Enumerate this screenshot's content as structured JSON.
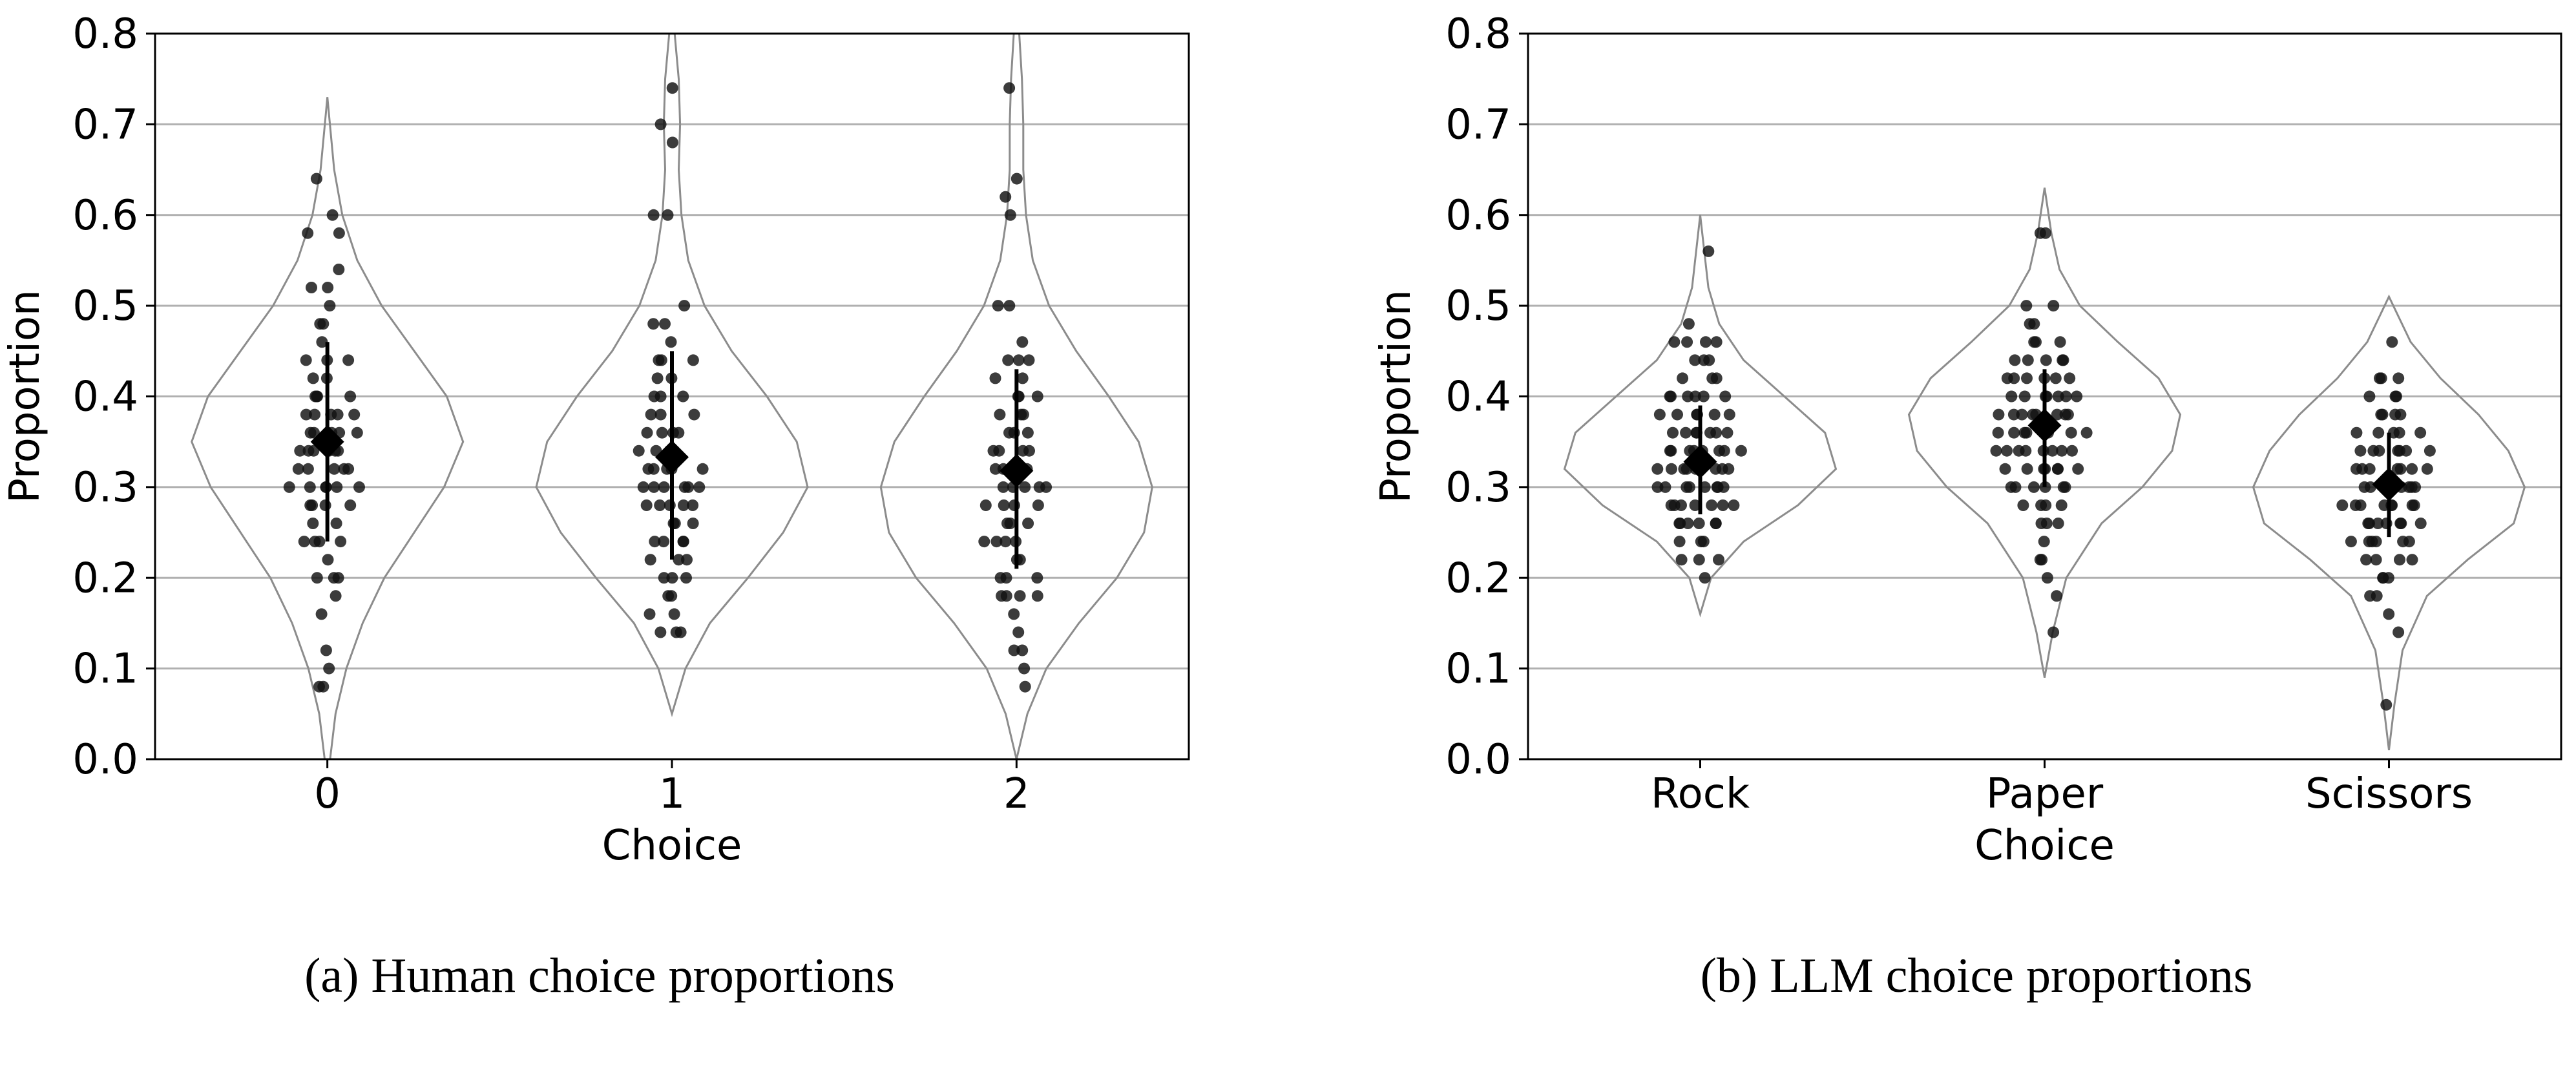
{
  "chart_data": [
    {
      "type": "violin",
      "ylabel": "Proportion",
      "xlabel": "Choice",
      "ylim": [
        0,
        0.8
      ],
      "yticks": [
        "0.0",
        "0.1",
        "0.2",
        "0.3",
        "0.4",
        "0.5",
        "0.6",
        "0.7",
        "0.8"
      ],
      "grid": "horizontal",
      "caption": "(a) Human choice proportions",
      "categories": [
        "0",
        "1",
        "2"
      ],
      "groups": [
        {
          "category": "0",
          "mean": 0.35,
          "error_bar": [
            0.24,
            0.46
          ],
          "density": [
            [
              0.0,
              0.02
            ],
            [
              0.05,
              0.06
            ],
            [
              0.1,
              0.14
            ],
            [
              0.15,
              0.26
            ],
            [
              0.2,
              0.42
            ],
            [
              0.25,
              0.64
            ],
            [
              0.3,
              0.86
            ],
            [
              0.35,
              1.0
            ],
            [
              0.4,
              0.88
            ],
            [
              0.45,
              0.64
            ],
            [
              0.5,
              0.4
            ],
            [
              0.55,
              0.22
            ],
            [
              0.6,
              0.11
            ],
            [
              0.65,
              0.05
            ],
            [
              0.73,
              0.0
            ]
          ],
          "points": [
            0.08,
            0.08,
            0.1,
            0.12,
            0.16,
            0.18,
            0.2,
            0.2,
            0.2,
            0.22,
            0.24,
            0.24,
            0.24,
            0.24,
            0.26,
            0.26,
            0.28,
            0.28,
            0.28,
            0.28,
            0.3,
            0.3,
            0.3,
            0.3,
            0.3,
            0.3,
            0.32,
            0.32,
            0.32,
            0.32,
            0.32,
            0.34,
            0.34,
            0.34,
            0.34,
            0.34,
            0.34,
            0.36,
            0.36,
            0.36,
            0.36,
            0.36,
            0.38,
            0.38,
            0.38,
            0.38,
            0.38,
            0.4,
            0.4,
            0.4,
            0.4,
            0.42,
            0.42,
            0.44,
            0.44,
            0.44,
            0.46,
            0.48,
            0.48,
            0.5,
            0.52,
            0.52,
            0.54,
            0.58,
            0.58,
            0.6,
            0.64
          ]
        },
        {
          "category": "1",
          "mean": 0.333,
          "error_bar": [
            0.22,
            0.45
          ],
          "density": [
            [
              0.05,
              0.0
            ],
            [
              0.1,
              0.1
            ],
            [
              0.15,
              0.28
            ],
            [
              0.2,
              0.56
            ],
            [
              0.25,
              0.82
            ],
            [
              0.3,
              1.0
            ],
            [
              0.35,
              0.92
            ],
            [
              0.4,
              0.7
            ],
            [
              0.45,
              0.44
            ],
            [
              0.5,
              0.24
            ],
            [
              0.55,
              0.12
            ],
            [
              0.6,
              0.07
            ],
            [
              0.65,
              0.05
            ],
            [
              0.7,
              0.06
            ],
            [
              0.75,
              0.05
            ],
            [
              0.8,
              0.02
            ]
          ],
          "points": [
            0.14,
            0.14,
            0.14,
            0.16,
            0.16,
            0.18,
            0.18,
            0.2,
            0.2,
            0.2,
            0.22,
            0.22,
            0.22,
            0.24,
            0.24,
            0.24,
            0.24,
            0.26,
            0.26,
            0.26,
            0.28,
            0.28,
            0.28,
            0.28,
            0.28,
            0.3,
            0.3,
            0.3,
            0.3,
            0.3,
            0.3,
            0.32,
            0.32,
            0.32,
            0.32,
            0.32,
            0.34,
            0.34,
            0.34,
            0.34,
            0.36,
            0.36,
            0.36,
            0.36,
            0.38,
            0.38,
            0.38,
            0.4,
            0.4,
            0.4,
            0.42,
            0.42,
            0.44,
            0.44,
            0.44,
            0.46,
            0.48,
            0.48,
            0.5,
            0.6,
            0.6,
            0.68,
            0.7,
            0.74
          ]
        },
        {
          "category": "2",
          "mean": 0.318,
          "error_bar": [
            0.21,
            0.43
          ],
          "density": [
            [
              0.0,
              0.0
            ],
            [
              0.05,
              0.08
            ],
            [
              0.1,
              0.22
            ],
            [
              0.15,
              0.46
            ],
            [
              0.2,
              0.74
            ],
            [
              0.25,
              0.94
            ],
            [
              0.3,
              1.0
            ],
            [
              0.35,
              0.9
            ],
            [
              0.4,
              0.68
            ],
            [
              0.45,
              0.44
            ],
            [
              0.5,
              0.24
            ],
            [
              0.55,
              0.12
            ],
            [
              0.6,
              0.07
            ],
            [
              0.65,
              0.05
            ],
            [
              0.7,
              0.05
            ],
            [
              0.75,
              0.04
            ],
            [
              0.8,
              0.02
            ]
          ],
          "points": [
            0.08,
            0.1,
            0.12,
            0.12,
            0.14,
            0.16,
            0.18,
            0.18,
            0.18,
            0.18,
            0.2,
            0.2,
            0.2,
            0.22,
            0.22,
            0.24,
            0.24,
            0.24,
            0.24,
            0.26,
            0.26,
            0.26,
            0.28,
            0.28,
            0.28,
            0.28,
            0.3,
            0.3,
            0.3,
            0.3,
            0.3,
            0.32,
            0.32,
            0.32,
            0.32,
            0.34,
            0.34,
            0.34,
            0.34,
            0.36,
            0.36,
            0.36,
            0.38,
            0.38,
            0.38,
            0.4,
            0.4,
            0.4,
            0.42,
            0.42,
            0.44,
            0.44,
            0.44,
            0.46,
            0.5,
            0.5,
            0.6,
            0.62,
            0.64,
            0.74
          ]
        }
      ]
    },
    {
      "type": "violin",
      "ylabel": "Proportion",
      "xlabel": "Choice",
      "ylim": [
        0,
        0.8
      ],
      "yticks": [
        "0.0",
        "0.1",
        "0.2",
        "0.3",
        "0.4",
        "0.5",
        "0.6",
        "0.7",
        "0.8"
      ],
      "grid": "horizontal",
      "caption": "(b) LLM choice proportions",
      "categories": [
        "Rock",
        "Paper",
        "Scissors"
      ],
      "groups": [
        {
          "category": "Rock",
          "mean": 0.328,
          "error_bar": [
            0.27,
            0.39
          ],
          "density": [
            [
              0.16,
              0.0
            ],
            [
              0.2,
              0.08
            ],
            [
              0.24,
              0.32
            ],
            [
              0.28,
              0.72
            ],
            [
              0.32,
              1.0
            ],
            [
              0.36,
              0.92
            ],
            [
              0.4,
              0.62
            ],
            [
              0.44,
              0.32
            ],
            [
              0.48,
              0.14
            ],
            [
              0.52,
              0.06
            ],
            [
              0.56,
              0.03
            ],
            [
              0.6,
              0.0
            ]
          ],
          "points": [
            0.2,
            0.22,
            0.22,
            0.22,
            0.24,
            0.24,
            0.24,
            0.26,
            0.26,
            0.26,
            0.26,
            0.26,
            0.26,
            0.28,
            0.28,
            0.28,
            0.28,
            0.28,
            0.28,
            0.28,
            0.3,
            0.3,
            0.3,
            0.3,
            0.3,
            0.3,
            0.3,
            0.3,
            0.32,
            0.32,
            0.32,
            0.32,
            0.32,
            0.32,
            0.32,
            0.32,
            0.34,
            0.34,
            0.34,
            0.34,
            0.34,
            0.34,
            0.34,
            0.34,
            0.36,
            0.36,
            0.36,
            0.36,
            0.36,
            0.36,
            0.36,
            0.38,
            0.38,
            0.38,
            0.38,
            0.38,
            0.38,
            0.4,
            0.4,
            0.4,
            0.4,
            0.4,
            0.4,
            0.42,
            0.42,
            0.42,
            0.44,
            0.44,
            0.44,
            0.46,
            0.46,
            0.46,
            0.46,
            0.48,
            0.56
          ]
        },
        {
          "category": "Paper",
          "mean": 0.368,
          "error_bar": [
            0.3,
            0.43
          ],
          "density": [
            [
              0.09,
              0.0
            ],
            [
              0.14,
              0.06
            ],
            [
              0.2,
              0.16
            ],
            [
              0.26,
              0.42
            ],
            [
              0.3,
              0.72
            ],
            [
              0.34,
              0.94
            ],
            [
              0.38,
              1.0
            ],
            [
              0.42,
              0.84
            ],
            [
              0.46,
              0.54
            ],
            [
              0.5,
              0.26
            ],
            [
              0.54,
              0.11
            ],
            [
              0.58,
              0.05
            ],
            [
              0.63,
              0.0
            ]
          ],
          "points": [
            0.14,
            0.18,
            0.2,
            0.22,
            0.22,
            0.24,
            0.26,
            0.26,
            0.26,
            0.28,
            0.28,
            0.28,
            0.28,
            0.3,
            0.3,
            0.3,
            0.3,
            0.3,
            0.3,
            0.32,
            0.32,
            0.32,
            0.32,
            0.32,
            0.32,
            0.32,
            0.34,
            0.34,
            0.34,
            0.34,
            0.34,
            0.34,
            0.34,
            0.34,
            0.36,
            0.36,
            0.36,
            0.36,
            0.36,
            0.36,
            0.36,
            0.36,
            0.38,
            0.38,
            0.38,
            0.38,
            0.38,
            0.38,
            0.38,
            0.38,
            0.4,
            0.4,
            0.4,
            0.4,
            0.4,
            0.4,
            0.4,
            0.42,
            0.42,
            0.42,
            0.42,
            0.42,
            0.42,
            0.44,
            0.44,
            0.44,
            0.44,
            0.44,
            0.46,
            0.46,
            0.46,
            0.48,
            0.48,
            0.5,
            0.5,
            0.58,
            0.58
          ]
        },
        {
          "category": "Scissors",
          "mean": 0.303,
          "error_bar": [
            0.245,
            0.36
          ],
          "density": [
            [
              0.01,
              0.0
            ],
            [
              0.06,
              0.04
            ],
            [
              0.12,
              0.1
            ],
            [
              0.18,
              0.28
            ],
            [
              0.22,
              0.58
            ],
            [
              0.26,
              0.92
            ],
            [
              0.3,
              1.0
            ],
            [
              0.34,
              0.88
            ],
            [
              0.38,
              0.66
            ],
            [
              0.42,
              0.38
            ],
            [
              0.46,
              0.16
            ],
            [
              0.51,
              0.0
            ]
          ],
          "points": [
            0.06,
            0.14,
            0.16,
            0.18,
            0.18,
            0.2,
            0.2,
            0.2,
            0.22,
            0.22,
            0.22,
            0.22,
            0.24,
            0.24,
            0.24,
            0.24,
            0.24,
            0.24,
            0.26,
            0.26,
            0.26,
            0.26,
            0.26,
            0.26,
            0.26,
            0.28,
            0.28,
            0.28,
            0.28,
            0.28,
            0.28,
            0.28,
            0.28,
            0.3,
            0.3,
            0.3,
            0.3,
            0.3,
            0.3,
            0.3,
            0.32,
            0.32,
            0.32,
            0.32,
            0.32,
            0.32,
            0.32,
            0.34,
            0.34,
            0.34,
            0.34,
            0.34,
            0.34,
            0.34,
            0.36,
            0.36,
            0.36,
            0.36,
            0.36,
            0.38,
            0.38,
            0.38,
            0.38,
            0.4,
            0.4,
            0.4,
            0.42,
            0.42,
            0.42,
            0.46
          ]
        }
      ]
    }
  ]
}
